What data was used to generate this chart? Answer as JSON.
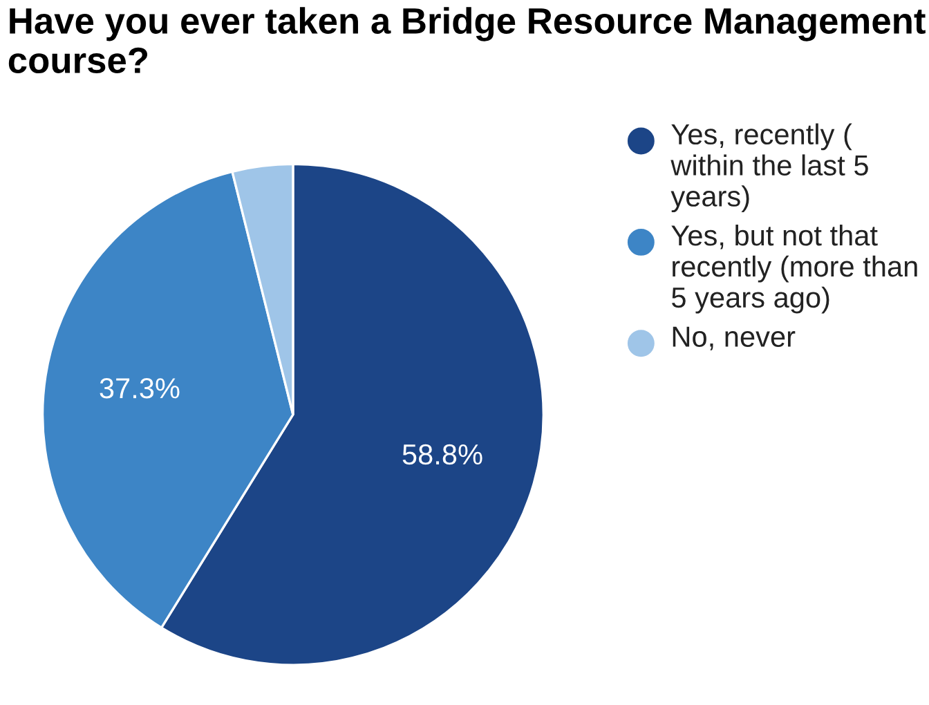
{
  "chart_data": {
    "type": "pie",
    "title": "Have you ever taken a Bridge Resource Management course?",
    "categories": [
      "Yes, recently ( within the last 5 years)",
      "Yes, but not that recently (more than 5 years ago)",
      "No, never"
    ],
    "values": [
      58.8,
      37.3,
      3.9
    ],
    "colors": [
      "#1c4587",
      "#3d85c6",
      "#9fc5e8"
    ],
    "value_labels": [
      "58.8%",
      "37.3%",
      null
    ],
    "legend": "right"
  }
}
